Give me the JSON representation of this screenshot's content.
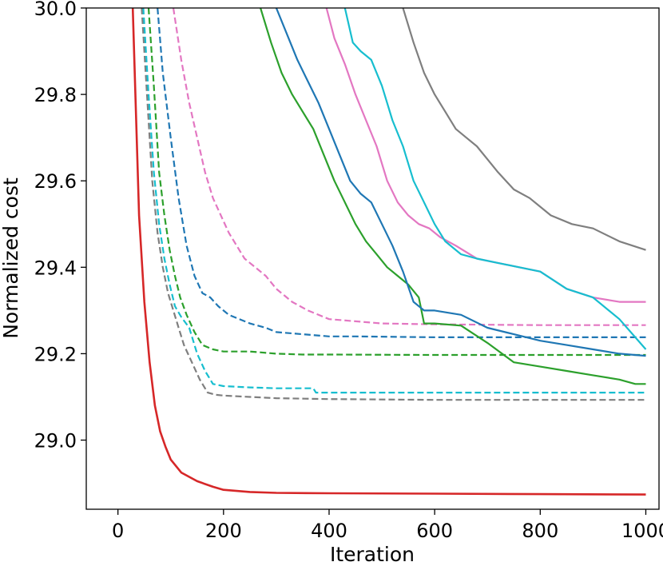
{
  "chart_data": {
    "type": "line",
    "title": "",
    "xlabel": "Iteration",
    "ylabel": "Normalized cost",
    "xlim": [
      -60,
      1025
    ],
    "ylim": [
      28.84,
      30.0
    ],
    "xticks": [
      0,
      200,
      400,
      600,
      800,
      1000
    ],
    "xtick_labels": [
      "0",
      "200",
      "400",
      "600",
      "800",
      "1000"
    ],
    "yticks": [
      29.0,
      29.2,
      29.4,
      29.6,
      29.8,
      30.0
    ],
    "ytick_labels": [
      "29.0",
      "29.2",
      "29.4",
      "29.6",
      "29.8",
      "30.0"
    ],
    "grid": false,
    "legend": "none",
    "series": [
      {
        "color": "#d62728",
        "style": "solid",
        "x": [
          28,
          40,
          50,
          60,
          70,
          80,
          90,
          100,
          120,
          150,
          180,
          200,
          250,
          300,
          400,
          600,
          800,
          1000
        ],
        "y": [
          30.0,
          29.52,
          29.32,
          29.18,
          29.08,
          29.02,
          28.985,
          28.955,
          28.925,
          28.905,
          28.892,
          28.885,
          28.88,
          28.878,
          28.877,
          28.876,
          28.875,
          28.874
        ]
      },
      {
        "color": "#7f7f7f",
        "style": "dashed",
        "x": [
          45,
          55,
          65,
          75,
          85,
          95,
          105,
          115,
          125,
          140,
          155,
          170,
          185,
          200,
          250,
          300,
          400,
          600,
          800,
          1000
        ],
        "y": [
          30.0,
          29.8,
          29.6,
          29.48,
          29.4,
          29.34,
          29.3,
          29.26,
          29.22,
          29.18,
          29.14,
          29.11,
          29.105,
          29.103,
          29.1,
          29.097,
          29.095,
          29.093,
          29.093,
          29.093
        ]
      },
      {
        "color": "#17becf",
        "style": "dashed",
        "x": [
          48,
          58,
          68,
          78,
          88,
          98,
          108,
          120,
          135,
          150,
          165,
          180,
          200,
          250,
          300,
          370,
          375,
          500,
          700,
          1000
        ],
        "y": [
          30.0,
          29.8,
          29.62,
          29.5,
          29.42,
          29.36,
          29.31,
          29.285,
          29.26,
          29.2,
          29.16,
          29.13,
          29.125,
          29.122,
          29.12,
          29.12,
          29.11,
          29.11,
          29.11,
          29.11
        ]
      },
      {
        "color": "#2ca02c",
        "style": "dashed",
        "x": [
          58,
          68,
          78,
          88,
          98,
          108,
          118,
          130,
          145,
          160,
          180,
          200,
          250,
          300,
          350,
          400,
          600,
          800,
          1000
        ],
        "y": [
          30.0,
          29.82,
          29.62,
          29.52,
          29.44,
          29.38,
          29.33,
          29.29,
          29.25,
          29.22,
          29.21,
          29.205,
          29.205,
          29.2,
          29.198,
          29.198,
          29.197,
          29.197,
          29.197
        ]
      },
      {
        "color": "#1f77b4",
        "style": "dashed",
        "x": [
          75,
          85,
          100,
          115,
          130,
          145,
          160,
          175,
          190,
          210,
          230,
          250,
          280,
          300,
          350,
          400,
          450,
          600,
          800,
          1000
        ],
        "y": [
          30.0,
          29.85,
          29.7,
          29.56,
          29.45,
          29.38,
          29.34,
          29.33,
          29.31,
          29.29,
          29.28,
          29.27,
          29.26,
          29.25,
          29.245,
          29.24,
          29.24,
          29.238,
          29.238,
          29.238
        ]
      },
      {
        "color": "#e377c2",
        "style": "dashed",
        "x": [
          105,
          120,
          135,
          150,
          165,
          180,
          195,
          210,
          225,
          240,
          260,
          280,
          300,
          330,
          360,
          400,
          450,
          500,
          600,
          800,
          1000
        ],
        "y": [
          30.0,
          29.88,
          29.78,
          29.7,
          29.62,
          29.56,
          29.52,
          29.48,
          29.45,
          29.42,
          29.4,
          29.38,
          29.35,
          29.32,
          29.3,
          29.28,
          29.275,
          29.27,
          29.268,
          29.266,
          29.266
        ]
      },
      {
        "color": "#2ca02c",
        "style": "solid",
        "x": [
          270,
          290,
          310,
          330,
          350,
          370,
          390,
          410,
          430,
          450,
          470,
          490,
          510,
          530,
          550,
          570,
          580,
          600,
          650,
          700,
          750,
          800,
          850,
          900,
          950,
          980,
          1000
        ],
        "y": [
          30.0,
          29.92,
          29.85,
          29.8,
          29.76,
          29.72,
          29.66,
          29.6,
          29.55,
          29.5,
          29.46,
          29.43,
          29.4,
          29.38,
          29.36,
          29.33,
          29.27,
          29.27,
          29.265,
          29.225,
          29.18,
          29.17,
          29.16,
          29.15,
          29.14,
          29.13,
          29.13
        ]
      },
      {
        "color": "#1f77b4",
        "style": "solid",
        "x": [
          300,
          320,
          340,
          360,
          380,
          400,
          420,
          440,
          460,
          480,
          500,
          520,
          540,
          560,
          580,
          600,
          650,
          700,
          750,
          800,
          850,
          900,
          950,
          1000
        ],
        "y": [
          30.0,
          29.94,
          29.88,
          29.83,
          29.78,
          29.72,
          29.66,
          29.6,
          29.57,
          29.55,
          29.5,
          29.45,
          29.39,
          29.32,
          29.3,
          29.3,
          29.29,
          29.26,
          29.245,
          29.23,
          29.22,
          29.21,
          29.2,
          29.195
        ]
      },
      {
        "color": "#e377c2",
        "style": "solid",
        "x": [
          395,
          410,
          430,
          450,
          470,
          490,
          510,
          530,
          550,
          570,
          590,
          610,
          640,
          680,
          720,
          760,
          800,
          850,
          900,
          950,
          1000
        ],
        "y": [
          30.0,
          29.93,
          29.87,
          29.8,
          29.74,
          29.68,
          29.6,
          29.55,
          29.52,
          29.5,
          29.49,
          29.47,
          29.45,
          29.42,
          29.41,
          29.4,
          29.39,
          29.35,
          29.33,
          29.32,
          29.32
        ]
      },
      {
        "color": "#17becf",
        "style": "solid",
        "x": [
          430,
          445,
          460,
          480,
          500,
          520,
          540,
          560,
          580,
          600,
          620,
          650,
          680,
          720,
          760,
          800,
          850,
          900,
          950,
          1000
        ],
        "y": [
          30.0,
          29.92,
          29.9,
          29.88,
          29.82,
          29.74,
          29.68,
          29.6,
          29.55,
          29.5,
          29.46,
          29.43,
          29.42,
          29.41,
          29.4,
          29.39,
          29.35,
          29.33,
          29.28,
          29.21
        ]
      },
      {
        "color": "#7f7f7f",
        "style": "solid",
        "x": [
          540,
          560,
          580,
          600,
          620,
          640,
          660,
          680,
          700,
          720,
          750,
          780,
          820,
          860,
          900,
          950,
          1000
        ],
        "y": [
          30.0,
          29.92,
          29.85,
          29.8,
          29.76,
          29.72,
          29.7,
          29.68,
          29.65,
          29.62,
          29.58,
          29.56,
          29.52,
          29.5,
          29.49,
          29.46,
          29.44
        ]
      }
    ]
  }
}
